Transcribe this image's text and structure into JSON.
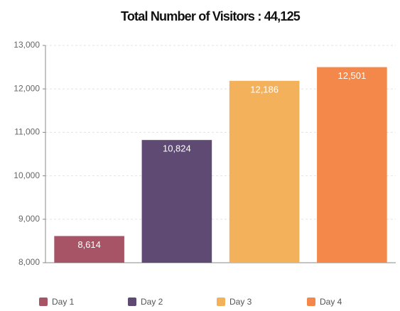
{
  "chart_data": {
    "type": "bar",
    "title": "Total Number of Visitors : 44,125",
    "categories": [
      "Day 1",
      "Day 2",
      "Day 3",
      "Day 4"
    ],
    "values": [
      8614,
      10824,
      12186,
      12501
    ],
    "value_labels": [
      "8,614",
      "10,824",
      "12,186",
      "12,501"
    ],
    "colors": [
      "#a85467",
      "#5e4a73",
      "#f3b15c",
      "#f4884a"
    ],
    "ylim": [
      8000,
      13000
    ],
    "yticks": [
      {
        "value": 8000,
        "label": "8,000"
      },
      {
        "value": 9000,
        "label": "9,000"
      },
      {
        "value": 10000,
        "label": "10,000"
      },
      {
        "value": 11000,
        "label": "11,000"
      },
      {
        "value": 12000,
        "label": "12,000"
      },
      {
        "value": 13000,
        "label": "13,000"
      }
    ],
    "grid": true,
    "legend": "bottom"
  }
}
